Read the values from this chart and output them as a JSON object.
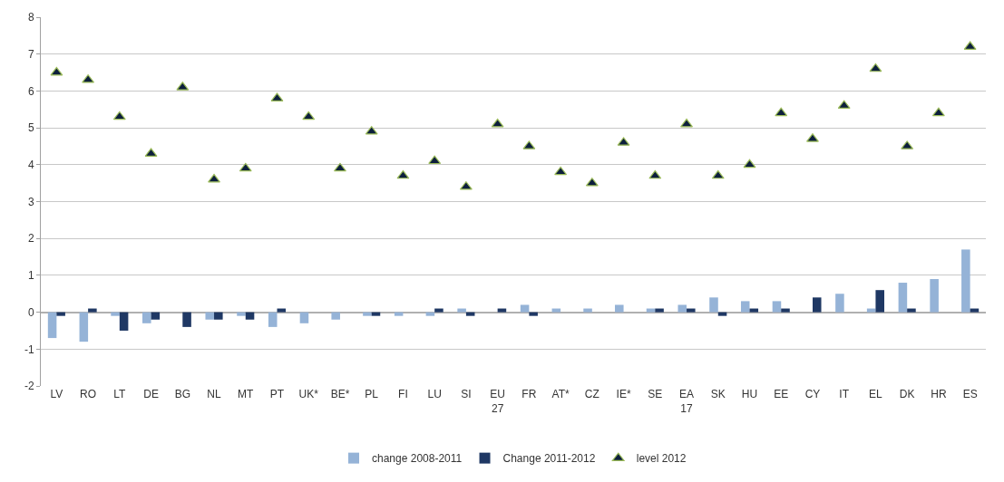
{
  "chart_data": {
    "type": "bar",
    "categories": [
      "LV",
      "RO",
      "LT",
      "DE",
      "BG",
      "NL",
      "MT",
      "PT",
      "UK*",
      "BE*",
      "PL",
      "FI",
      "LU",
      "SI",
      "EU\n27",
      "FR",
      "AT*",
      "CZ",
      "IE*",
      "SE",
      "EA\n17",
      "SK",
      "HU",
      "EE",
      "CY",
      "IT",
      "EL",
      "DK",
      "HR",
      "ES"
    ],
    "series": [
      {
        "name": "change 2008-2011",
        "color": "#95b3d7",
        "values": [
          -0.7,
          -0.8,
          -0.1,
          -0.3,
          null,
          -0.2,
          -0.1,
          -0.4,
          -0.3,
          -0.2,
          -0.1,
          -0.1,
          -0.1,
          0.1,
          null,
          0.2,
          0.1,
          0.1,
          0.2,
          0.1,
          0.2,
          0.4,
          0.3,
          0.3,
          null,
          0.5,
          0.1,
          0.8,
          0.9,
          1.7
        ]
      },
      {
        "name": "Change 2011-2012",
        "color": "#1f3864",
        "values": [
          -0.1,
          0.1,
          -0.5,
          -0.2,
          -0.4,
          -0.2,
          -0.2,
          0.1,
          null,
          null,
          -0.1,
          null,
          0.1,
          -0.1,
          0.1,
          -0.1,
          null,
          null,
          null,
          0.1,
          0.1,
          -0.1,
          0.1,
          0.1,
          0.4,
          null,
          0.6,
          0.1,
          null,
          0.1
        ]
      },
      {
        "name": "level 2012",
        "type": "scatter",
        "color": "#0d1f3c",
        "marker": "triangle",
        "values": [
          6.5,
          6.3,
          5.3,
          4.3,
          6.1,
          3.6,
          3.9,
          5.8,
          5.3,
          3.9,
          4.9,
          3.7,
          4.1,
          3.4,
          5.1,
          4.5,
          3.8,
          3.5,
          4.6,
          3.7,
          5.1,
          3.7,
          4.0,
          5.4,
          4.7,
          5.6,
          6.6,
          4.5,
          5.4,
          7.2
        ]
      }
    ],
    "ylim": [
      -2,
      8
    ],
    "yticks": [
      -2,
      -1,
      0,
      1,
      2,
      3,
      4,
      5,
      6,
      7,
      8
    ],
    "grid": "y",
    "legend": "bottom"
  }
}
